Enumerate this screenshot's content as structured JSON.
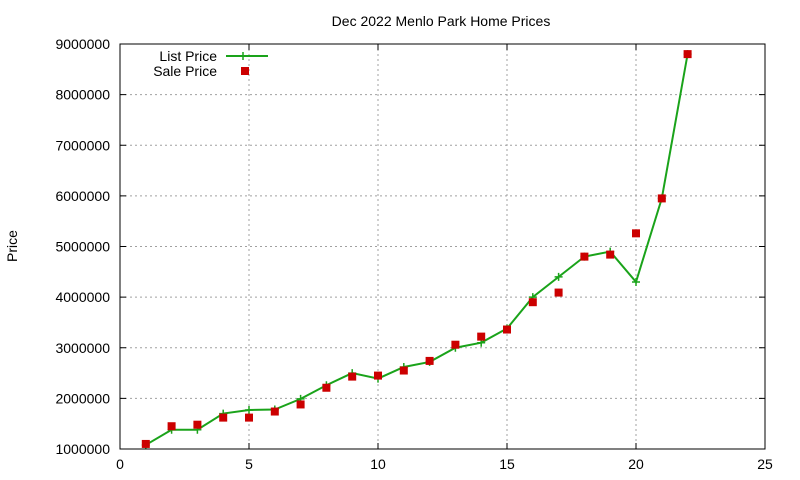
{
  "chart_data": {
    "type": "line",
    "title": "Dec 2022 Menlo Park Home Prices",
    "xlabel": "",
    "ylabel": "Price",
    "xlim": [
      0,
      25
    ],
    "ylim": [
      1000000,
      9000000
    ],
    "x_ticks": [
      "0",
      "5",
      "10",
      "15",
      "20",
      "25"
    ],
    "y_ticks": [
      "1000000",
      "2000000",
      "3000000",
      "4000000",
      "5000000",
      "6000000",
      "7000000",
      "8000000",
      "9000000"
    ],
    "grid": true,
    "legend_position": "top-left",
    "series": [
      {
        "name": "List Price",
        "style": "line-with-plus-markers",
        "color": "#1aa31a",
        "x": [
          1,
          2,
          3,
          4,
          5,
          6,
          7,
          8,
          9,
          10,
          11,
          12,
          13,
          14,
          15,
          16,
          17,
          18,
          19,
          20,
          21,
          22
        ],
        "y": [
          1080000,
          1380000,
          1380000,
          1700000,
          1770000,
          1780000,
          1990000,
          2260000,
          2500000,
          2390000,
          2620000,
          2720000,
          3000000,
          3100000,
          3380000,
          4000000,
          4400000,
          4800000,
          4900000,
          4300000,
          5950000,
          8800000
        ]
      },
      {
        "name": "Sale Price",
        "style": "square-markers",
        "color": "#cc0000",
        "x": [
          1,
          2,
          3,
          4,
          5,
          6,
          7,
          8,
          9,
          10,
          11,
          12,
          13,
          14,
          15,
          16,
          17,
          18,
          19,
          20,
          21,
          22
        ],
        "y": [
          1100000,
          1450000,
          1480000,
          1620000,
          1620000,
          1740000,
          1880000,
          2210000,
          2430000,
          2450000,
          2550000,
          2740000,
          3060000,
          3220000,
          3360000,
          3900000,
          4090000,
          4800000,
          4840000,
          5260000,
          5950000,
          8800000
        ]
      }
    ]
  }
}
